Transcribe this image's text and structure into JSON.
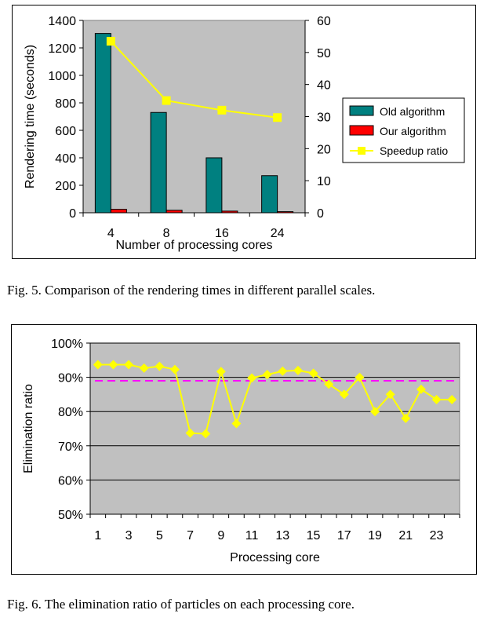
{
  "chart_data": [
    {
      "type": "bar",
      "categories": [
        "4",
        "8",
        "16",
        "24"
      ],
      "series": [
        {
          "name": "Old algorithm",
          "type": "bar",
          "axis": "left",
          "color": "#008080",
          "values": [
            1305,
            730,
            400,
            270
          ]
        },
        {
          "name": "Our algorithm",
          "type": "bar",
          "axis": "left",
          "color": "#ff0000",
          "values": [
            25,
            18,
            12,
            8
          ]
        },
        {
          "name": "Speedup ratio",
          "type": "line",
          "axis": "right",
          "color": "#ffff00",
          "values": [
            53.5,
            35,
            32,
            29.7
          ]
        }
      ],
      "xlabel": "Number of processing cores",
      "ylabel": "Rendering time (seconds)",
      "ylim": [
        0,
        1400
      ],
      "y_ticks": [
        "0",
        "200",
        "400",
        "600",
        "800",
        "1000",
        "1200",
        "1400"
      ],
      "y2lim": [
        0,
        60
      ],
      "y2_ticks": [
        "0",
        "10",
        "20",
        "30",
        "40",
        "50",
        "60"
      ],
      "grid": false,
      "legend": "right",
      "plot_background": "#c0c0c0"
    },
    {
      "type": "line",
      "x": [
        1,
        2,
        3,
        4,
        5,
        6,
        7,
        8,
        9,
        10,
        11,
        12,
        13,
        14,
        15,
        16,
        17,
        18,
        19,
        20,
        21,
        22,
        23,
        24
      ],
      "series": [
        {
          "color": "#ffff00",
          "values": [
            93.7,
            93.7,
            93.7,
            92.7,
            93.2,
            92.3,
            73.7,
            73.5,
            91.7,
            76.5,
            89.8,
            90.8,
            91.8,
            92.0,
            91.2,
            88.0,
            85.0,
            90.0,
            80.0,
            85.0,
            78.0,
            86.5,
            83.5,
            83.5
          ]
        }
      ],
      "reference_line": {
        "value": 89,
        "color": "#ff00ff",
        "style": "dashed"
      },
      "xlabel": "Processing core",
      "ylabel": "Elimination ratio",
      "ylim": [
        50,
        100
      ],
      "y_ticks": [
        "50%",
        "60%",
        "70%",
        "80%",
        "90%",
        "100%"
      ],
      "x_ticks": [
        "1",
        "3",
        "5",
        "7",
        "9",
        "11",
        "13",
        "15",
        "17",
        "19",
        "21",
        "23"
      ],
      "grid": true,
      "plot_background": "#c0c0c0"
    }
  ],
  "captions": {
    "fig5": "Fig. 5.   Comparison of the rendering times in different parallel scales.",
    "fig6": "Fig. 6.   The elimination ratio of particles on each processing core."
  }
}
